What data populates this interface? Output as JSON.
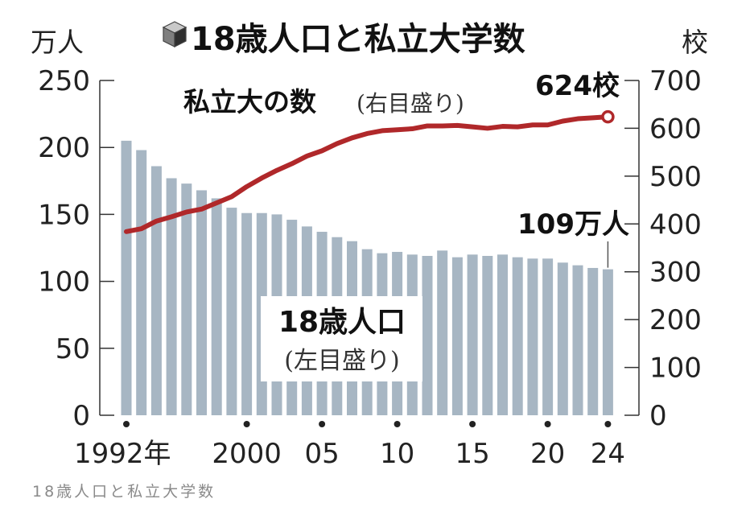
{
  "caption": "18歳人口と私立大学数",
  "chart_data": {
    "type": "bar+line",
    "title": "18歳人口と私立大学数",
    "left_axis": {
      "unit": "万人",
      "ylim": [
        0,
        250
      ],
      "ticks": [
        0,
        50,
        100,
        150,
        200,
        250
      ]
    },
    "right_axis": {
      "unit": "校",
      "ylim": [
        0,
        700
      ],
      "ticks": [
        0,
        100,
        200,
        300,
        400,
        500,
        600,
        700
      ]
    },
    "x_ticks": [
      {
        "year": 1992,
        "label": "1992年"
      },
      {
        "year": 2000,
        "label": "2000"
      },
      {
        "year": 2005,
        "label": "05"
      },
      {
        "year": 2010,
        "label": "10"
      },
      {
        "year": 2015,
        "label": "15"
      },
      {
        "year": 2020,
        "label": "20"
      },
      {
        "year": 2024,
        "label": "24"
      }
    ],
    "x": [
      1992,
      1993,
      1994,
      1995,
      1996,
      1997,
      1998,
      1999,
      2000,
      2001,
      2002,
      2003,
      2004,
      2005,
      2006,
      2007,
      2008,
      2009,
      2010,
      2011,
      2012,
      2013,
      2014,
      2015,
      2016,
      2017,
      2018,
      2019,
      2020,
      2021,
      2022,
      2023,
      2024
    ],
    "series": [
      {
        "name": "18歳人口",
        "note": "(左目盛り)",
        "type": "bar",
        "axis": "left",
        "color": "#a7b6c3",
        "values": [
          205,
          198,
          186,
          177,
          173,
          168,
          162,
          155,
          151,
          151,
          150,
          146,
          141,
          137,
          133,
          130,
          124,
          121,
          122,
          120,
          119,
          123,
          118,
          120,
          119,
          120,
          118,
          117,
          117,
          114,
          112,
          110,
          109
        ]
      },
      {
        "name": "私立大の数",
        "note": "(右目盛り)",
        "type": "line",
        "axis": "right",
        "color": "#b0282a",
        "values": [
          384,
          390,
          406,
          415,
          425,
          431,
          444,
          457,
          478,
          496,
          512,
          526,
          542,
          553,
          568,
          580,
          589,
          595,
          597,
          599,
          605,
          605,
          606,
          603,
          600,
          604,
          603,
          607,
          607,
          615,
          620,
          622,
          624
        ]
      }
    ],
    "annotations": [
      {
        "text": "624校",
        "series": "私立大の数",
        "year": 2024
      },
      {
        "text": "109万人",
        "series": "18歳人口",
        "year": 2024
      }
    ]
  }
}
